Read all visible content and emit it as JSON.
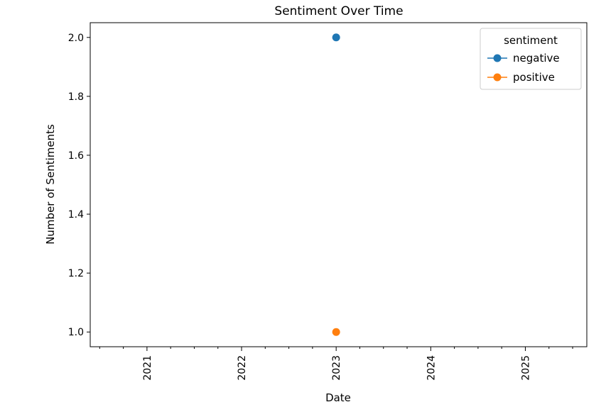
{
  "chart_data": {
    "type": "line",
    "title": "Sentiment Over Time",
    "xlabel": "Date",
    "ylabel": "Number of Sentiments",
    "xlim": [
      2020.4,
      2025.65
    ],
    "ylim": [
      0.95,
      2.05
    ],
    "x_ticks": [
      2021,
      2022,
      2023,
      2024,
      2025
    ],
    "x_tick_labels": [
      "2021",
      "2022",
      "2023",
      "2024",
      "2025"
    ],
    "y_ticks": [
      1.0,
      1.2,
      1.4,
      1.6,
      1.8,
      2.0
    ],
    "y_tick_labels": [
      "1.0",
      "1.2",
      "1.4",
      "1.6",
      "1.8",
      "2.0"
    ],
    "legend": {
      "title": "sentiment",
      "location": "upper right"
    },
    "series": [
      {
        "name": "negative",
        "color": "#1f77b4",
        "x": [
          2023
        ],
        "y": [
          2
        ]
      },
      {
        "name": "positive",
        "color": "#ff7f0e",
        "x": [
          2023
        ],
        "y": [
          1
        ]
      }
    ]
  }
}
